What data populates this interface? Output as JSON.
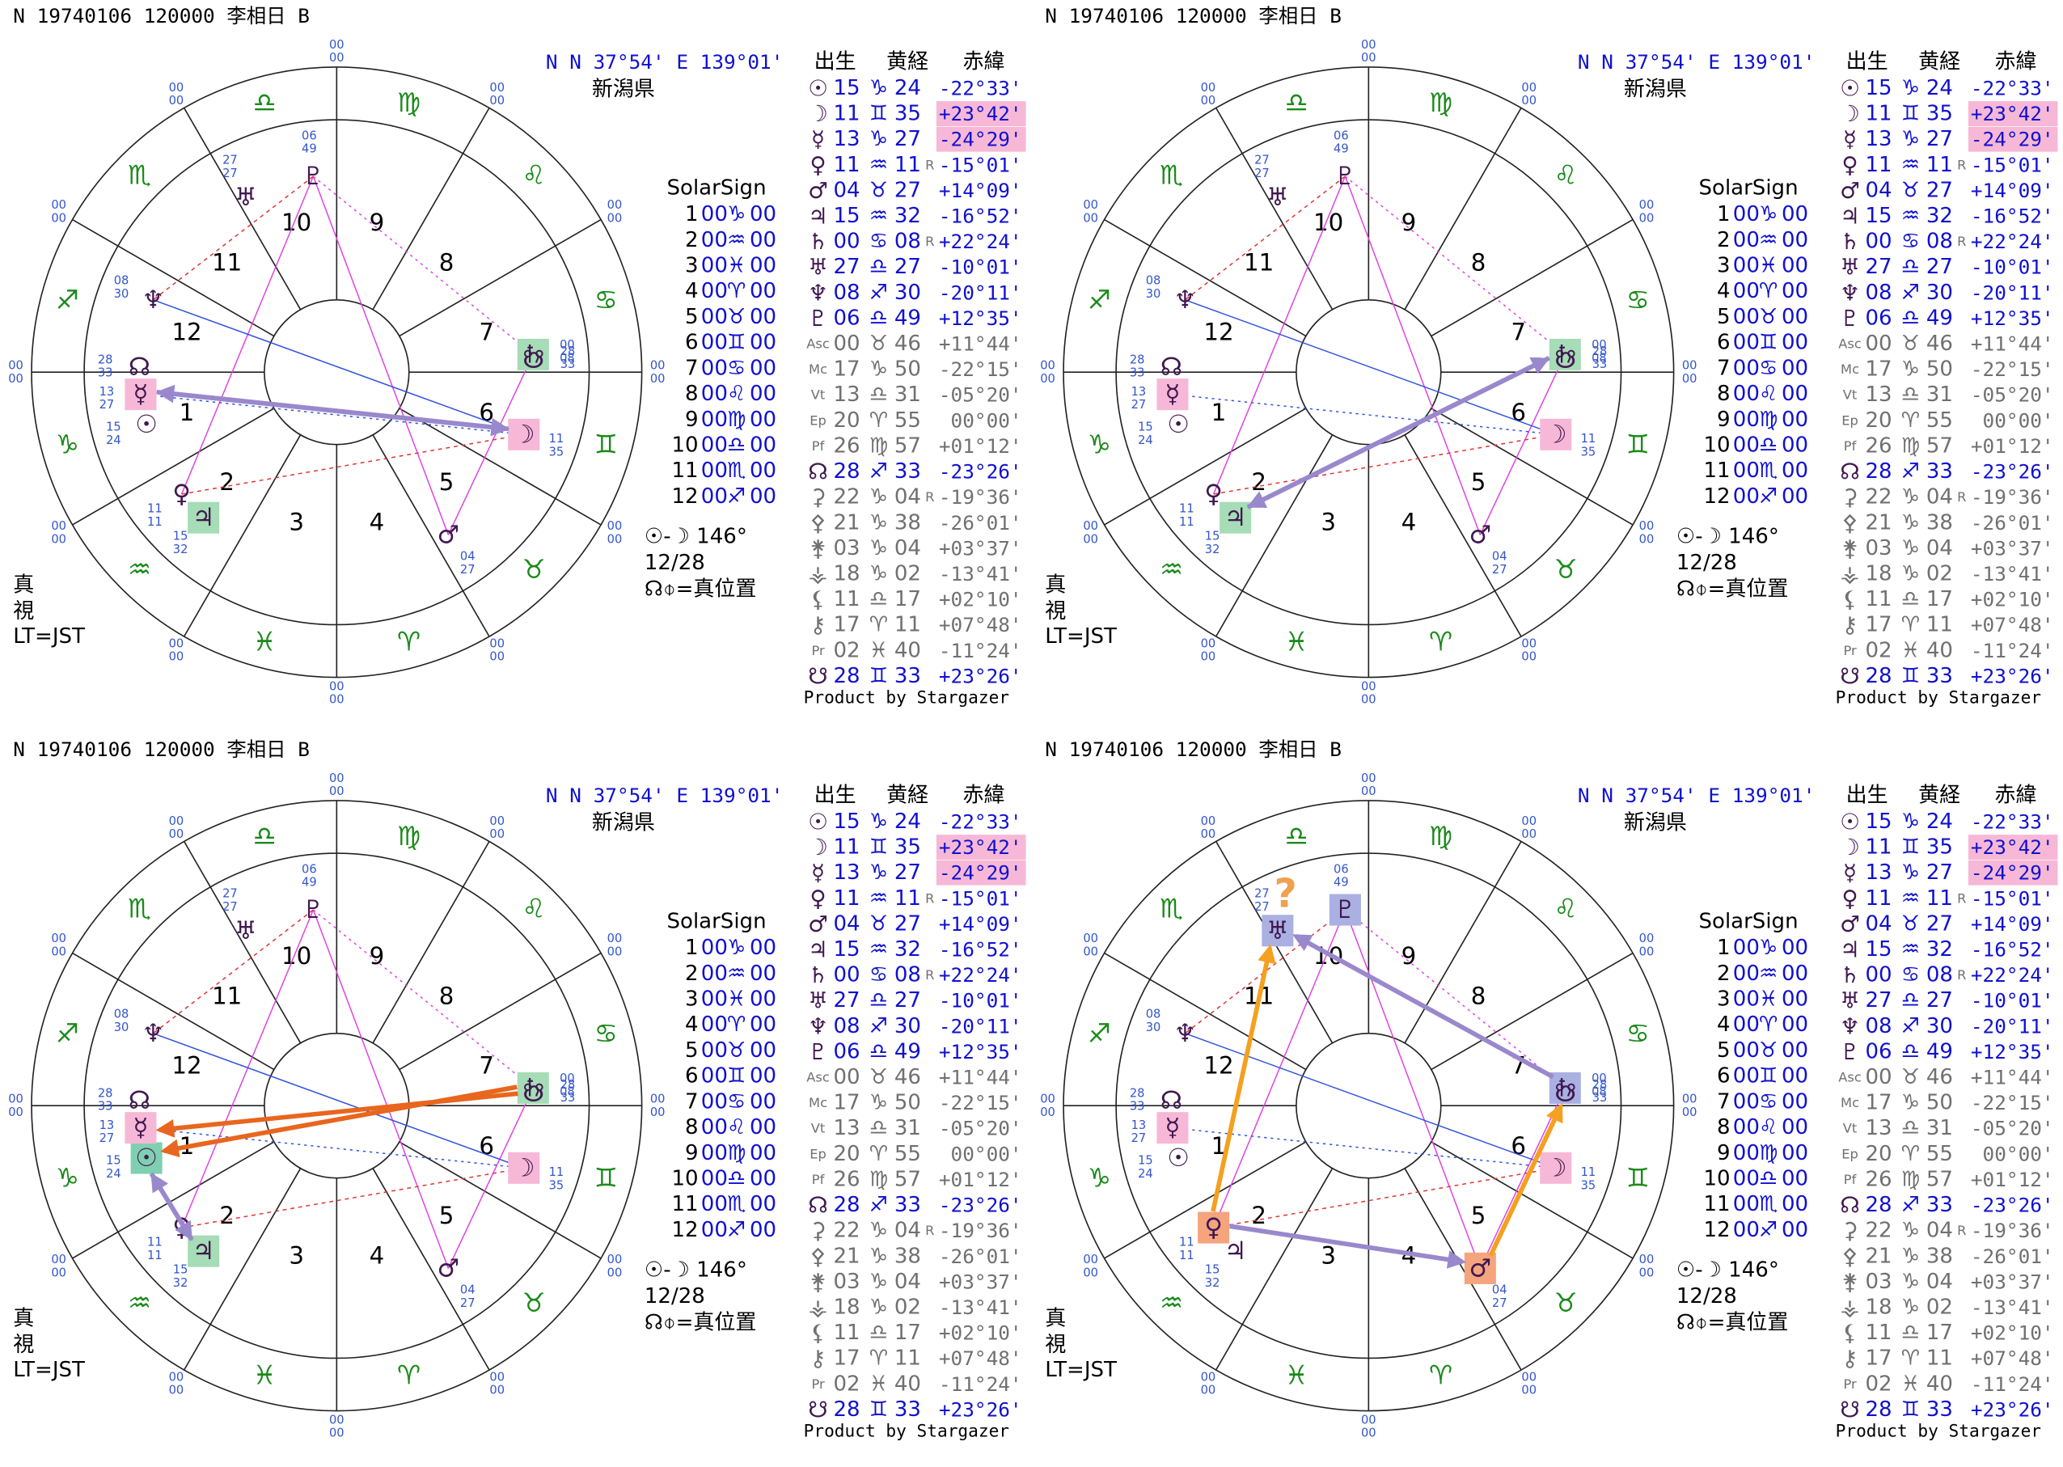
{
  "header": "N 19740106 120000 李相日 B",
  "location": "N N  37°54' E 139°01'",
  "prefecture": "新潟県",
  "table_header": [
    "出生",
    "黄経",
    "赤緯"
  ],
  "table": {
    "rows": [
      {
        "symbol": "☉",
        "deg": "15",
        "sign": "♑",
        "min": "24",
        "retro": "",
        "decl": "-22°33'",
        "color": "#1010d0"
      },
      {
        "symbol": "☽",
        "deg": "11",
        "sign": "♊",
        "min": "35",
        "retro": "",
        "decl": "+23°42'",
        "color": "#1010d0"
      },
      {
        "symbol": "☿",
        "deg": "13",
        "sign": "♑",
        "min": "27",
        "retro": "",
        "decl": "-24°29'",
        "color": "#1010d0"
      },
      {
        "symbol": "♀",
        "deg": "11",
        "sign": "♒",
        "min": "11",
        "retro": "R",
        "decl": "-15°01'",
        "color": "#1010d0"
      },
      {
        "symbol": "♂",
        "deg": "04",
        "sign": "♉",
        "min": "27",
        "retro": "",
        "decl": "+14°09'",
        "color": "#1010d0"
      },
      {
        "symbol": "♃",
        "deg": "15",
        "sign": "♒",
        "min": "32",
        "retro": "",
        "decl": "-16°52'",
        "color": "#1010d0"
      },
      {
        "symbol": "♄",
        "deg": "00",
        "sign": "♋",
        "min": "08",
        "retro": "R",
        "decl": "+22°24'",
        "color": "#1010d0"
      },
      {
        "symbol": "♅",
        "deg": "27",
        "sign": "♎",
        "min": "27",
        "retro": "",
        "decl": "-10°01'",
        "color": "#1010d0"
      },
      {
        "symbol": "♆",
        "deg": "08",
        "sign": "♐",
        "min": "30",
        "retro": "",
        "decl": "-20°11'",
        "color": "#1010d0"
      },
      {
        "symbol": "♇",
        "deg": "06",
        "sign": "♎",
        "min": "49",
        "retro": "",
        "decl": "+12°35'",
        "color": "#1010d0"
      },
      {
        "symbol": "Asc",
        "deg": "00",
        "sign": "♉",
        "min": "46",
        "retro": "",
        "decl": "+11°44'",
        "color": "#707070"
      },
      {
        "symbol": "Mc",
        "deg": "17",
        "sign": "♑",
        "min": "50",
        "retro": "",
        "decl": "-22°15'",
        "color": "#707070"
      },
      {
        "symbol": "Vt",
        "deg": "13",
        "sign": "♎",
        "min": "31",
        "retro": "",
        "decl": "-05°20'",
        "color": "#707070"
      },
      {
        "symbol": "Ep",
        "deg": "20",
        "sign": "♈",
        "min": "55",
        "retro": "",
        "decl": "00°00'",
        "color": "#707070"
      },
      {
        "symbol": "Pf",
        "deg": "26",
        "sign": "♍",
        "min": "57",
        "retro": "",
        "decl": "+01°12'",
        "color": "#707070"
      },
      {
        "symbol": "☊",
        "deg": "28",
        "sign": "♐",
        "min": "33",
        "retro": "",
        "decl": "-23°26'",
        "color": "#1010d0"
      },
      {
        "symbol": "⚳",
        "deg": "22",
        "sign": "♑",
        "min": "04",
        "retro": "R",
        "decl": "-19°36'",
        "color": "#707070"
      },
      {
        "symbol": "⚴",
        "deg": "21",
        "sign": "♑",
        "min": "38",
        "retro": "",
        "decl": "-26°01'",
        "color": "#707070"
      },
      {
        "symbol": "⚵",
        "deg": "03",
        "sign": "♑",
        "min": "04",
        "retro": "",
        "decl": "+03°37'",
        "color": "#707070"
      },
      {
        "symbol": "⚶",
        "deg": "18",
        "sign": "♑",
        "min": "02",
        "retro": "",
        "decl": "-13°41'",
        "color": "#707070"
      },
      {
        "symbol": "⚸",
        "deg": "11",
        "sign": "♎",
        "min": "17",
        "retro": "",
        "decl": "+02°10'",
        "color": "#707070"
      },
      {
        "symbol": "⚷",
        "deg": "17",
        "sign": "♈",
        "min": "11",
        "retro": "",
        "decl": "+07°48'",
        "color": "#707070"
      },
      {
        "symbol": "Pr",
        "deg": "02",
        "sign": "♓",
        "min": "40",
        "retro": "",
        "decl": "-11°24'",
        "color": "#707070"
      },
      {
        "symbol": "☋",
        "deg": "28",
        "sign": "♊",
        "min": "33",
        "retro": "",
        "decl": "+23°26'",
        "color": "#1010d0"
      }
    ]
  },
  "solar_sign": {
    "title": "SolarSign",
    "rows": [
      {
        "house": "1",
        "deg": "00",
        "sign": "♑",
        "min": "00"
      },
      {
        "house": "2",
        "deg": "00",
        "sign": "♒",
        "min": "00"
      },
      {
        "house": "3",
        "deg": "00",
        "sign": "♓",
        "min": "00"
      },
      {
        "house": "4",
        "deg": "00",
        "sign": "♈",
        "min": "00"
      },
      {
        "house": "5",
        "deg": "00",
        "sign": "♉",
        "min": "00"
      },
      {
        "house": "6",
        "deg": "00",
        "sign": "♊",
        "min": "00"
      },
      {
        "house": "7",
        "deg": "00",
        "sign": "♋",
        "min": "00"
      },
      {
        "house": "8",
        "deg": "00",
        "sign": "♌",
        "min": "00"
      },
      {
        "house": "9",
        "deg": "00",
        "sign": "♍",
        "min": "00"
      },
      {
        "house": "10",
        "deg": "00",
        "sign": "♎",
        "min": "00"
      },
      {
        "house": "11",
        "deg": "00",
        "sign": "♏",
        "min": "00"
      },
      {
        "house": "12",
        "deg": "00",
        "sign": "♐",
        "min": "00"
      }
    ]
  },
  "aspect": "☉-☽ 146°",
  "date": "12/28",
  "note": "☊⌽=真位置",
  "left_labels": [
    "真",
    "視",
    "LT=JST"
  ],
  "credit": "Product by Stargazer",
  "annotation": "?"
}
